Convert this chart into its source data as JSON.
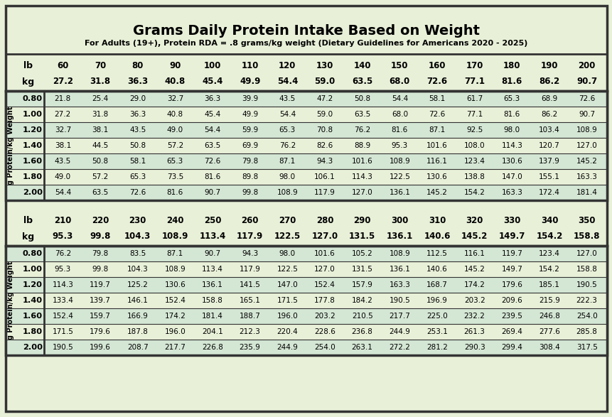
{
  "title": "Grams Daily Protein Intake Based on Weight",
  "subtitle": "For Adults (19+), Protein RDA = .8 grams/kg weight (Dietary Guidelines for Americans 2020 - 2025)",
  "background_color": "#e8f0d8",
  "border_color": "#333333",
  "text_color": "#000000",
  "alt_row_color": "#d4e6d4",
  "lbs_row1": [
    "60",
    "70",
    "80",
    "90",
    "100",
    "110",
    "120",
    "130",
    "140",
    "150",
    "160",
    "170",
    "180",
    "190",
    "200"
  ],
  "kg_row1": [
    "27.2",
    "31.8",
    "36.3",
    "40.8",
    "45.4",
    "49.9",
    "54.4",
    "59.0",
    "63.5",
    "68.0",
    "72.6",
    "77.1",
    "81.6",
    "86.2",
    "90.7"
  ],
  "protein_rates": [
    "0.80",
    "1.00",
    "1.20",
    "1.40",
    "1.60",
    "1.80",
    "2.00"
  ],
  "table1_data": [
    [
      "21.8",
      "25.4",
      "29.0",
      "32.7",
      "36.3",
      "39.9",
      "43.5",
      "47.2",
      "50.8",
      "54.4",
      "58.1",
      "61.7",
      "65.3",
      "68.9",
      "72.6"
    ],
    [
      "27.2",
      "31.8",
      "36.3",
      "40.8",
      "45.4",
      "49.9",
      "54.4",
      "59.0",
      "63.5",
      "68.0",
      "72.6",
      "77.1",
      "81.6",
      "86.2",
      "90.7"
    ],
    [
      "32.7",
      "38.1",
      "43.5",
      "49.0",
      "54.4",
      "59.9",
      "65.3",
      "70.8",
      "76.2",
      "81.6",
      "87.1",
      "92.5",
      "98.0",
      "103.4",
      "108.9"
    ],
    [
      "38.1",
      "44.5",
      "50.8",
      "57.2",
      "63.5",
      "69.9",
      "76.2",
      "82.6",
      "88.9",
      "95.3",
      "101.6",
      "108.0",
      "114.3",
      "120.7",
      "127.0"
    ],
    [
      "43.5",
      "50.8",
      "58.1",
      "65.3",
      "72.6",
      "79.8",
      "87.1",
      "94.3",
      "101.6",
      "108.9",
      "116.1",
      "123.4",
      "130.6",
      "137.9",
      "145.2"
    ],
    [
      "49.0",
      "57.2",
      "65.3",
      "73.5",
      "81.6",
      "89.8",
      "98.0",
      "106.1",
      "114.3",
      "122.5",
      "130.6",
      "138.8",
      "147.0",
      "155.1",
      "163.3"
    ],
    [
      "54.4",
      "63.5",
      "72.6",
      "81.6",
      "90.7",
      "99.8",
      "108.9",
      "117.9",
      "127.0",
      "136.1",
      "145.2",
      "154.2",
      "163.3",
      "172.4",
      "181.4"
    ]
  ],
  "lbs_row2": [
    "210",
    "220",
    "230",
    "240",
    "250",
    "260",
    "270",
    "280",
    "290",
    "300",
    "310",
    "320",
    "330",
    "340",
    "350"
  ],
  "kg_row2": [
    "95.3",
    "99.8",
    "104.3",
    "108.9",
    "113.4",
    "117.9",
    "122.5",
    "127.0",
    "131.5",
    "136.1",
    "140.6",
    "145.2",
    "149.7",
    "154.2",
    "158.8"
  ],
  "table2_data": [
    [
      "76.2",
      "79.8",
      "83.5",
      "87.1",
      "90.7",
      "94.3",
      "98.0",
      "101.6",
      "105.2",
      "108.9",
      "112.5",
      "116.1",
      "119.7",
      "123.4",
      "127.0"
    ],
    [
      "95.3",
      "99.8",
      "104.3",
      "108.9",
      "113.4",
      "117.9",
      "122.5",
      "127.0",
      "131.5",
      "136.1",
      "140.6",
      "145.2",
      "149.7",
      "154.2",
      "158.8"
    ],
    [
      "114.3",
      "119.7",
      "125.2",
      "130.6",
      "136.1",
      "141.5",
      "147.0",
      "152.4",
      "157.9",
      "163.3",
      "168.7",
      "174.2",
      "179.6",
      "185.1",
      "190.5"
    ],
    [
      "133.4",
      "139.7",
      "146.1",
      "152.4",
      "158.8",
      "165.1",
      "171.5",
      "177.8",
      "184.2",
      "190.5",
      "196.9",
      "203.2",
      "209.6",
      "215.9",
      "222.3"
    ],
    [
      "152.4",
      "159.7",
      "166.9",
      "174.2",
      "181.4",
      "188.7",
      "196.0",
      "203.2",
      "210.5",
      "217.7",
      "225.0",
      "232.2",
      "239.5",
      "246.8",
      "254.0"
    ],
    [
      "171.5",
      "179.6",
      "187.8",
      "196.0",
      "204.1",
      "212.3",
      "220.4",
      "228.6",
      "236.8",
      "244.9",
      "253.1",
      "261.3",
      "269.4",
      "277.6",
      "285.8"
    ],
    [
      "190.5",
      "199.6",
      "208.7",
      "217.7",
      "226.8",
      "235.9",
      "244.9",
      "254.0",
      "263.1",
      "272.2",
      "281.2",
      "290.3",
      "299.4",
      "308.4",
      "317.5"
    ]
  ],
  "y_label": "g Protein/kg Weight"
}
